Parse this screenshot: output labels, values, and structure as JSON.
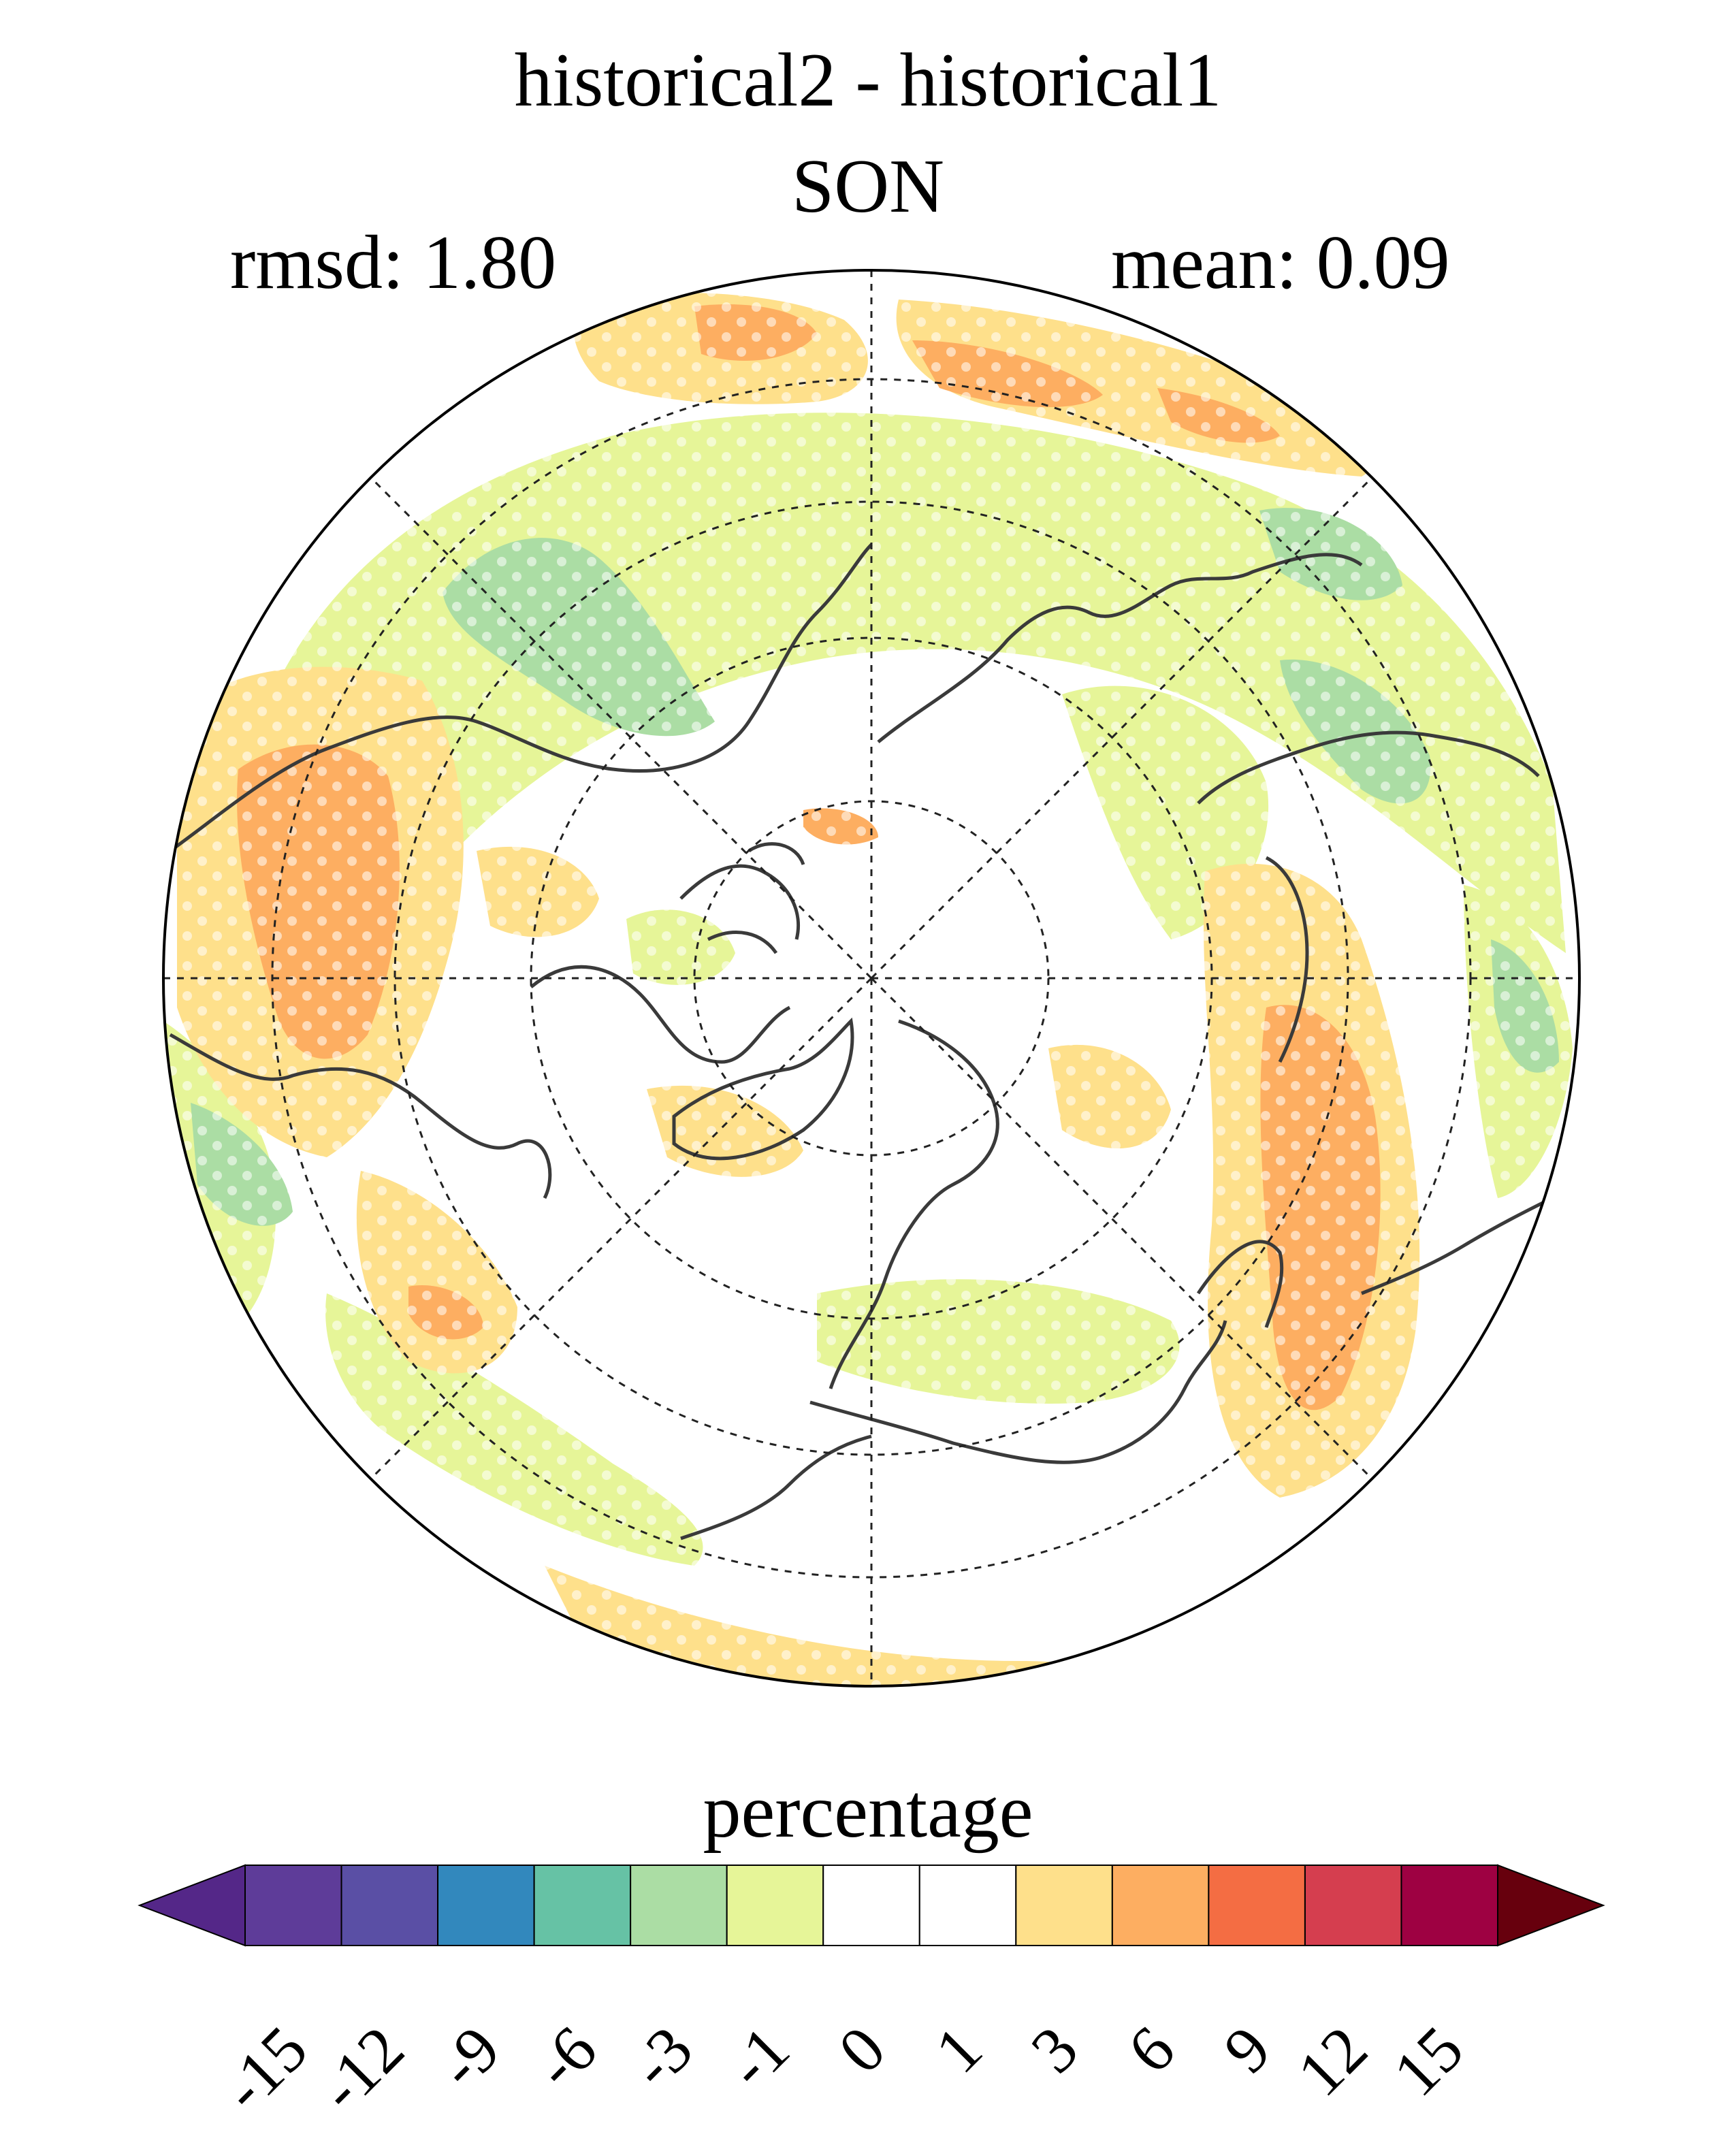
{
  "title": "historical2 - historical1",
  "season": "SON",
  "stats": {
    "rmsd": "rmsd: 1.80",
    "mean": "mean: 0.09"
  },
  "colorbar": {
    "label": "percentage",
    "ticks": [
      "-15",
      "-12",
      "-9",
      "-6",
      "-3",
      "-1",
      "0",
      "1",
      "3",
      "6",
      "9",
      "12",
      "15"
    ],
    "colors": [
      "#5e3c99",
      "#5a4fa5",
      "#3288bd",
      "#66c2a5",
      "#abdda4",
      "#e6f598",
      "#ffffff",
      "#ffffff",
      "#fee08b",
      "#fdae61",
      "#f46d43",
      "#d53e4f",
      "#9e0142"
    ],
    "under_color": "#542788",
    "over_color": "#67000d",
    "extend": "both"
  },
  "map": {
    "projection": "north-polar-stereographic",
    "field": "percentage difference",
    "stippling": "white dots mark significant areas",
    "grid": "dashed latitude circles and meridians"
  }
}
